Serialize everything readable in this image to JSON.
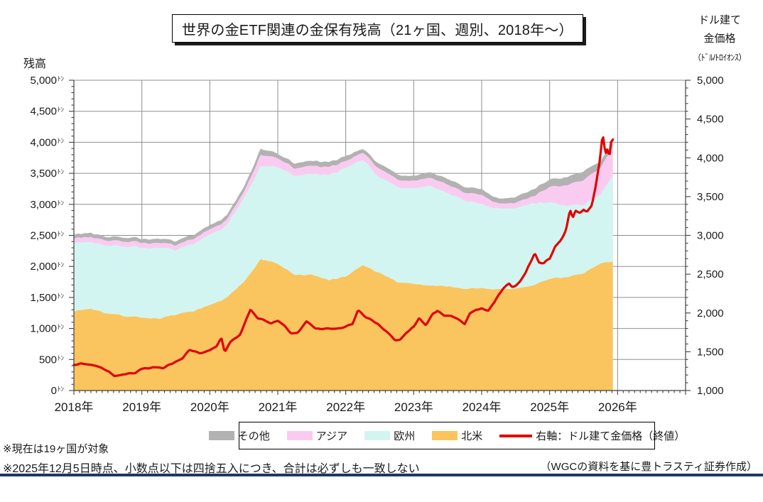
{
  "page": {
    "title": "世界の金ETF関連の金保有残高（21ヶ国、週別、2018年～）",
    "footnote_1": "※現在は19ヶ国が対象",
    "footnote_2": "※2025年12月5日時点、小数点以下は四捨五入につき、合計は必ずしも一致しない",
    "source": "（WGCの資料を基に豊トラスティ証券作成）",
    "rule_color": "#1F3864"
  },
  "chart_data": {
    "type": "area",
    "stacked": true,
    "title": "世界の金ETF関連の金保有残高（21ヶ国、週別、2018年～）",
    "left_axis": {
      "title": "残高",
      "unit": "ﾄﾝ",
      "min": 0,
      "max": 5000,
      "major_step": 500,
      "minor_step": 100
    },
    "right_axis": {
      "title_lines": [
        "ドル建て",
        "金価格",
        "（ﾄﾞﾙ/ﾄﾛｲｵﾝｽ）"
      ],
      "min": 1000,
      "max": 5000,
      "major_step": 500,
      "minor_step": 100
    },
    "x_axis": {
      "min": 2018,
      "max": 2027,
      "labeled_years": [
        2018,
        2019,
        2020,
        2021,
        2022,
        2023,
        2024,
        2025,
        2026
      ],
      "year_suffix": "年",
      "minor_step_months": 1
    },
    "grid": true,
    "data_end_x": 2025.93,
    "x": [
      2018.0,
      2018.25,
      2018.5,
      2018.75,
      2019.0,
      2019.25,
      2019.5,
      2019.75,
      2020.0,
      2020.25,
      2020.5,
      2020.75,
      2021.0,
      2021.25,
      2021.5,
      2021.75,
      2022.0,
      2022.25,
      2022.5,
      2022.75,
      2023.0,
      2023.25,
      2023.5,
      2023.75,
      2024.0,
      2024.25,
      2024.5,
      2024.75,
      2025.0,
      2025.25,
      2025.5,
      2025.75,
      2025.93
    ],
    "series": [
      {
        "id": "north-america",
        "name": "北米",
        "color": "#FAC55E",
        "values": [
          1280,
          1320,
          1240,
          1200,
          1180,
          1150,
          1220,
          1280,
          1370,
          1490,
          1750,
          2120,
          2040,
          1860,
          1860,
          1780,
          1830,
          2020,
          1890,
          1750,
          1720,
          1690,
          1680,
          1640,
          1650,
          1625,
          1640,
          1690,
          1800,
          1830,
          1890,
          2040,
          2080
        ]
      },
      {
        "id": "europe",
        "name": "欧州",
        "color": "#D3F5F1",
        "values": [
          1100,
          1080,
          1090,
          1130,
          1130,
          1140,
          1040,
          1090,
          1130,
          1160,
          1350,
          1500,
          1565,
          1600,
          1630,
          1690,
          1750,
          1700,
          1540,
          1530,
          1540,
          1610,
          1500,
          1430,
          1350,
          1305,
          1300,
          1320,
          1230,
          1150,
          1110,
          1110,
          1390
        ]
      },
      {
        "id": "asia",
        "name": "アジア",
        "color": "#FACBF0",
        "values": [
          80,
          80,
          80,
          80,
          80,
          80,
          80,
          80,
          80,
          90,
          100,
          180,
          140,
          120,
          130,
          130,
          110,
          115,
          140,
          120,
          120,
          130,
          140,
          130,
          150,
          80,
          90,
          110,
          250,
          330,
          400,
          430,
          460
        ]
      },
      {
        "id": "other",
        "name": "その他",
        "color": "#B2B2B2",
        "values": [
          60,
          65,
          60,
          60,
          65,
          65,
          65,
          65,
          65,
          70,
          80,
          100,
          70,
          80,
          80,
          80,
          80,
          60,
          80,
          80,
          80,
          90,
          90,
          90,
          90,
          80,
          90,
          110,
          120,
          130,
          140,
          110,
          80
        ]
      }
    ],
    "line_series": {
      "id": "gold-price",
      "name": "右軸：ドル建て金価格（終値）",
      "color": "#E10000",
      "axis": "right",
      "x": [
        2018.0,
        2018.1,
        2018.25,
        2018.4,
        2018.6,
        2018.75,
        2018.9,
        2019.0,
        2019.15,
        2019.3,
        2019.45,
        2019.6,
        2019.7,
        2019.85,
        2020.0,
        2020.1,
        2020.17,
        2020.22,
        2020.3,
        2020.45,
        2020.6,
        2020.7,
        2020.8,
        2020.9,
        2021.0,
        2021.1,
        2021.2,
        2021.3,
        2021.42,
        2021.55,
        2021.65,
        2021.75,
        2021.85,
        2022.0,
        2022.1,
        2022.18,
        2022.3,
        2022.4,
        2022.5,
        2022.6,
        2022.72,
        2022.8,
        2022.9,
        2023.0,
        2023.08,
        2023.18,
        2023.28,
        2023.35,
        2023.45,
        2023.55,
        2023.65,
        2023.75,
        2023.82,
        2023.92,
        2024.0,
        2024.1,
        2024.2,
        2024.3,
        2024.4,
        2024.45,
        2024.5,
        2024.58,
        2024.65,
        2024.72,
        2024.78,
        2024.84,
        2024.92,
        2025.0,
        2025.08,
        2025.16,
        2025.24,
        2025.3,
        2025.34,
        2025.38,
        2025.45,
        2025.5,
        2025.55,
        2025.62,
        2025.68,
        2025.74,
        2025.78,
        2025.82,
        2025.85,
        2025.88,
        2025.9,
        2025.93
      ],
      "values": [
        1330,
        1345,
        1335,
        1300,
        1190,
        1205,
        1230,
        1282,
        1300,
        1290,
        1350,
        1420,
        1525,
        1480,
        1520,
        1570,
        1680,
        1490,
        1620,
        1730,
        2050,
        1940,
        1900,
        1870,
        1900,
        1830,
        1730,
        1745,
        1890,
        1800,
        1790,
        1800,
        1790,
        1820,
        1860,
        2040,
        1940,
        1900,
        1840,
        1770,
        1660,
        1650,
        1750,
        1825,
        1930,
        1840,
        1980,
        2030,
        1960,
        1975,
        1920,
        1860,
        1985,
        2050,
        2060,
        2030,
        2160,
        2300,
        2390,
        2330,
        2350,
        2430,
        2530,
        2660,
        2780,
        2640,
        2650,
        2700,
        2860,
        2920,
        3060,
        3340,
        3220,
        3320,
        3290,
        3330,
        3300,
        3380,
        3650,
        3980,
        4320,
        4050,
        4110,
        4000,
        4200,
        4230
      ]
    },
    "legend": {
      "items": [
        {
          "label": "その他",
          "color": "#B2B2B2",
          "marker": "swatch"
        },
        {
          "label": "アジア",
          "color": "#FACBF0",
          "marker": "swatch"
        },
        {
          "label": "欧州",
          "color": "#D3F5F1",
          "marker": "swatch"
        },
        {
          "label": "北米",
          "color": "#FAC55E",
          "marker": "swatch"
        },
        {
          "label": "右軸：ドル建て金価格（終値）",
          "color": "#E10000",
          "marker": "line"
        }
      ]
    }
  }
}
